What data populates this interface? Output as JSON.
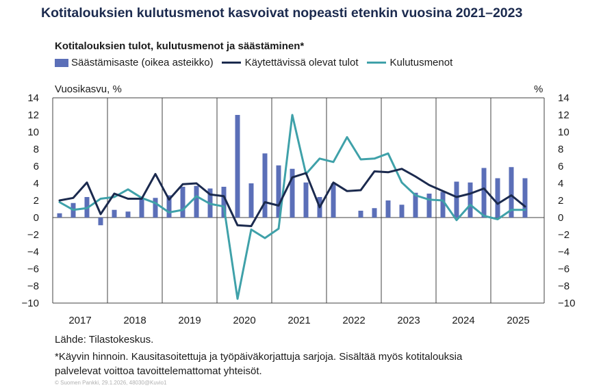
{
  "title": "Kotitalouksien kulutusmenot kasvoivat nopeasti etenkin vuosina 2021–2023",
  "colors": {
    "bars": "#5b6fb8",
    "disposable_income": "#1b2a4e",
    "consumption": "#3fa1a9"
  },
  "chart_data": {
    "type": "bar+line",
    "subtitle": "Kotitalouksien tulot, kulutusmenot ja säästäminen*",
    "ylabel_left": "Vuosikasvu, %",
    "ylabel_right": "%",
    "ylim": [
      -10,
      14
    ],
    "yticks": [
      "14",
      "12",
      "10",
      "8",
      "6",
      "4",
      "2",
      "0",
      "−2",
      "−4",
      "−6",
      "−8",
      "−10"
    ],
    "ytick_values": [
      14,
      12,
      10,
      8,
      6,
      4,
      2,
      0,
      -2,
      -4,
      -6,
      -8,
      -10
    ],
    "year_labels": [
      "2017",
      "2018",
      "2019",
      "2020",
      "2021",
      "2022",
      "2023",
      "2024",
      "2025"
    ],
    "quarters": [
      "2017Q1",
      "2017Q2",
      "2017Q3",
      "2017Q4",
      "2018Q1",
      "2018Q2",
      "2018Q3",
      "2018Q4",
      "2019Q1",
      "2019Q2",
      "2019Q3",
      "2019Q4",
      "2020Q1",
      "2020Q2",
      "2020Q3",
      "2020Q4",
      "2021Q1",
      "2021Q2",
      "2021Q3",
      "2021Q4",
      "2022Q1",
      "2022Q2",
      "2022Q3",
      "2022Q4",
      "2023Q1",
      "2023Q2",
      "2023Q3",
      "2023Q4",
      "2024Q1",
      "2024Q2",
      "2024Q3",
      "2024Q4",
      "2025Q1",
      "2025Q2",
      "2025Q3"
    ],
    "series": [
      {
        "name": "Säästämisaste (oikea asteikko)",
        "type": "bar",
        "axis": "right",
        "values": [
          0.5,
          1.7,
          2.4,
          -0.9,
          0.9,
          0.7,
          2.2,
          2.3,
          2.6,
          3.6,
          3.7,
          3.4,
          3.6,
          12.0,
          4.0,
          7.5,
          6.1,
          5.7,
          4.1,
          2.4,
          4.0,
          0.0,
          0.8,
          1.1,
          2.0,
          1.5,
          2.9,
          2.8,
          3.0,
          4.2,
          4.1,
          5.8,
          4.6,
          5.9,
          4.6
        ]
      },
      {
        "name": "Käytettävissä olevat tulot",
        "type": "line",
        "axis": "left",
        "values": [
          2.0,
          2.3,
          4.1,
          0.4,
          2.8,
          2.2,
          2.2,
          5.1,
          2.1,
          3.9,
          4.0,
          2.7,
          2.5,
          -0.9,
          -1.0,
          1.8,
          1.4,
          4.7,
          5.2,
          1.2,
          4.1,
          3.1,
          3.2,
          5.4,
          5.3,
          5.7,
          4.8,
          3.8,
          3.1,
          2.4,
          2.8,
          3.4,
          1.6,
          2.6,
          1.3
        ]
      },
      {
        "name": "Kulutusmenot",
        "type": "line",
        "axis": "left",
        "values": [
          1.8,
          0.9,
          1.1,
          2.2,
          2.4,
          3.3,
          2.3,
          1.7,
          0.6,
          0.9,
          2.5,
          1.6,
          1.3,
          -9.5,
          -1.4,
          -2.4,
          -1.3,
          12.0,
          5.1,
          6.9,
          6.5,
          9.4,
          6.8,
          6.9,
          7.5,
          4.1,
          2.6,
          2.1,
          2.0,
          -0.3,
          1.5,
          0.2,
          -0.2,
          0.9,
          0.9
        ]
      }
    ],
    "legend": [
      "Säästämisaste (oikea asteikko)",
      "Käytettävissä olevat tulot",
      "Kulutusmenot"
    ],
    "grid": "vertical year dividers"
  },
  "footnotes": {
    "source": "Lähde: Tilastokeskus.",
    "note_line1": "*Käyvin hinnoin. Kausitasoitettuja ja työpäiväkorjattuja sarjoja. Sisältää myös kotitalouksia",
    "note_line2": "palvelevat voittoa tavoittelemattomat  yhteisöt.",
    "copyright": "© Suomen Pankki, 29.1.2026, 48030@Kuvio1"
  }
}
